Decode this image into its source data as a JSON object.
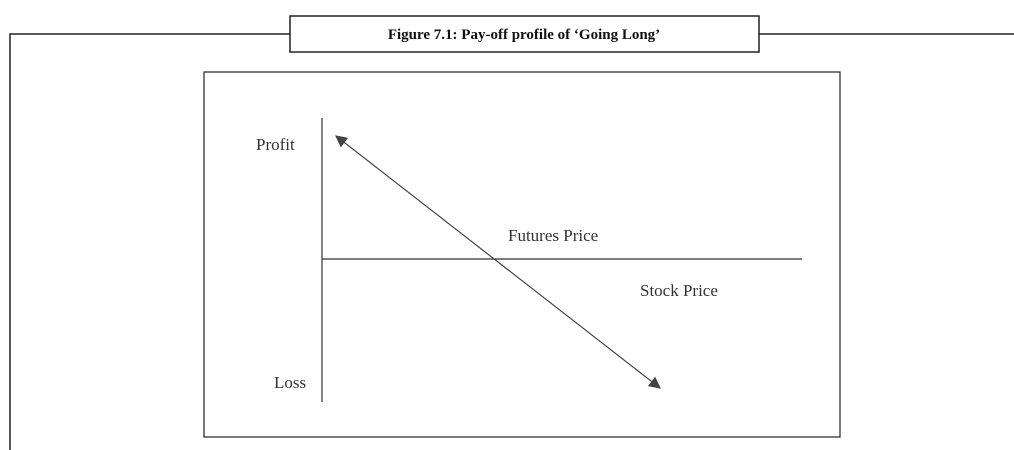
{
  "figure": {
    "title": "Figure 7.1: Pay-off profile of ‘Going Long’",
    "labels": {
      "profit": "Profit",
      "loss": "Loss",
      "futures_price": "Futures Price",
      "stock_price": "Stock Price"
    }
  }
}
